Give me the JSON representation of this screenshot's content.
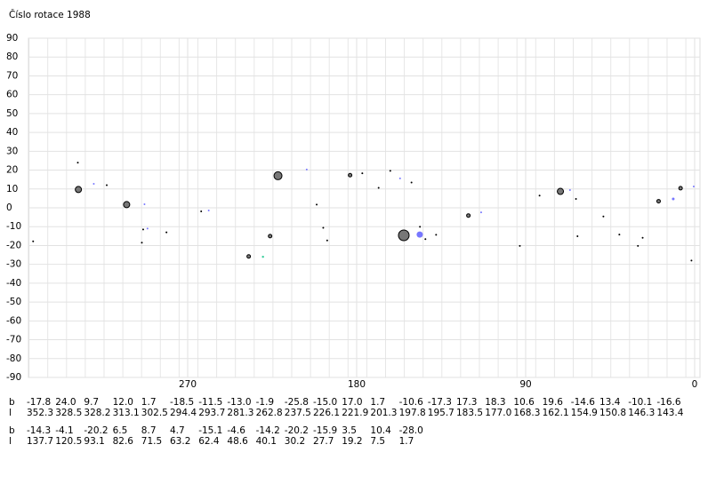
{
  "chart_data": {
    "type": "scatter",
    "title": "Číslo rotace  1988",
    "xlim": [
      360,
      0
    ],
    "ylim": [
      -90,
      90
    ],
    "xticks": [
      270,
      180,
      90,
      0
    ],
    "yticks": [
      90,
      80,
      70,
      60,
      50,
      40,
      30,
      20,
      10,
      0,
      -10,
      -20,
      -30,
      -40,
      -50,
      -60,
      -70,
      -80,
      -90
    ],
    "grid": true,
    "row_labels": [
      "b",
      "l"
    ],
    "series": [
      {
        "color": "#000000",
        "values": [
          -17.8,
          24.0,
          9.7,
          12.0,
          1.7,
          -18.5,
          -11.5,
          -13.0,
          -1.9,
          -25.8,
          -15.0,
          17.0,
          1.7,
          -10.6,
          -17.3,
          17.3,
          18.3,
          10.6,
          19.6,
          -14.6,
          13.4,
          -10.1,
          -16.6,
          -14.3,
          -4.1,
          -20.2,
          6.5,
          8.7,
          4.7,
          -15.1,
          -4.6,
          -14.2,
          -20.2,
          -15.9,
          3.5,
          10.4,
          -28.0
        ],
        "value_labels": [
          "-17.8",
          "24.0",
          "9.7",
          "12.0",
          "1.7",
          "-18.5",
          "-11.5",
          "-13.0",
          "-1.9",
          "-25.8",
          "-15.0",
          "17.0",
          "1.7",
          "-10.6",
          "-17.3",
          "17.3",
          "18.3",
          "10.6",
          "19.6",
          "-14.6",
          "13.4",
          "-10.1",
          "-16.6",
          "-14.3",
          "-4.1",
          "-20.2",
          "6.5",
          "8.7",
          "4.7",
          "-15.1",
          "-4.6",
          "-14.2",
          "-20.2",
          "-15.9",
          "3.5",
          "10.4",
          "-28.0"
        ],
        "x": [
          352.3,
          328.5,
          328.2,
          313.1,
          302.5,
          294.4,
          293.7,
          281.3,
          262.8,
          237.5,
          226.1,
          221.9,
          201.3,
          197.8,
          195.7,
          183.5,
          177.0,
          168.3,
          162.1,
          154.9,
          150.8,
          146.3,
          143.4,
          137.7,
          120.5,
          93.1,
          82.6,
          71.5,
          63.2,
          62.4,
          48.6,
          40.1,
          30.2,
          27.7,
          19.2,
          7.5,
          1.7
        ],
        "x_labels": [
          "352.3",
          "328.5",
          "328.2",
          "313.1",
          "302.5",
          "294.4",
          "293.7",
          "281.3",
          "262.8",
          "237.5",
          "226.1",
          "221.9",
          "201.3",
          "197.8",
          "195.7",
          "183.5",
          "177.0",
          "168.3",
          "162.1",
          "154.9",
          "150.8",
          "146.3",
          "143.4",
          "137.7",
          "120.5",
          "93.1",
          "82.6",
          "71.5",
          "63.2",
          "62.4",
          "48.6",
          "40.1",
          "30.2",
          "27.7",
          "19.2",
          "7.5",
          "1.7"
        ],
        "sizes": [
          1,
          1,
          3.5,
          1,
          3.5,
          1,
          1,
          1,
          1,
          2,
          2,
          4.5,
          1,
          1,
          1,
          2,
          1,
          1,
          1,
          6,
          1,
          1,
          1,
          1,
          2,
          1,
          1,
          3.5,
          1,
          1,
          1,
          1,
          1,
          1,
          2,
          2,
          1
        ]
      },
      {
        "color": "#7777ff",
        "values": [
          12.7,
          1.9,
          -11,
          -1.4,
          20.3,
          15.6,
          -14.2,
          -2.4,
          9.4,
          4.7,
          11.3
        ],
        "x": [
          320,
          293,
          291.4,
          258.8,
          206.6,
          156.9,
          146.4,
          113.7,
          66.4,
          11.4,
          0.5
        ],
        "sizes": [
          1,
          1,
          1,
          1,
          1,
          1,
          3.5,
          1,
          1,
          1.5,
          1
        ]
      },
      {
        "color": "#33cc99",
        "values": [
          -26
        ],
        "x": [
          229.9
        ],
        "sizes": [
          1.2
        ]
      }
    ]
  }
}
